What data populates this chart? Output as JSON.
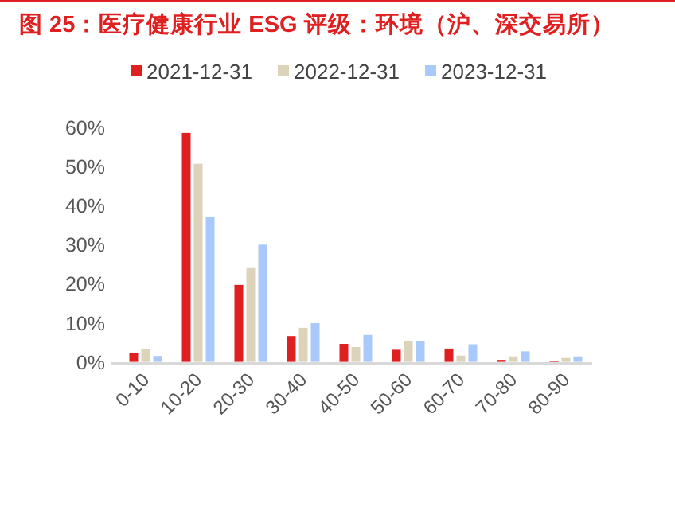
{
  "chart_data": {
    "type": "bar",
    "title": "图 25：医疗健康行业 ESG 评级：环境（沪、深交易所）",
    "categories": [
      "0-10",
      "10-20",
      "20-30",
      "30-40",
      "40-50",
      "50-60",
      "60-70",
      "70-80",
      "80-90"
    ],
    "series": [
      {
        "name": "2021-12-31",
        "color": "#e02020",
        "values": [
          2.3,
          58.6,
          19.7,
          6.6,
          4.6,
          3.1,
          3.4,
          0.5,
          0.3
        ]
      },
      {
        "name": "2022-12-31",
        "color": "#ddd3bb",
        "values": [
          3.3,
          50.7,
          24.0,
          8.7,
          3.8,
          5.4,
          1.6,
          1.4,
          1.0
        ]
      },
      {
        "name": "2023-12-31",
        "color": "#a9c9fb",
        "values": [
          1.5,
          37.0,
          30.0,
          9.9,
          6.9,
          5.4,
          4.5,
          2.7,
          1.4
        ]
      }
    ],
    "ylim": [
      0,
      60
    ],
    "yticks": [
      {
        "value": 0,
        "label": "0%"
      },
      {
        "value": 10,
        "label": "10%"
      },
      {
        "value": 20,
        "label": "20%"
      },
      {
        "value": 30,
        "label": "30%"
      },
      {
        "value": 40,
        "label": "40%"
      },
      {
        "value": 50,
        "label": "50%"
      },
      {
        "value": 60,
        "label": "60%"
      }
    ],
    "legend": "top",
    "grid": false
  }
}
